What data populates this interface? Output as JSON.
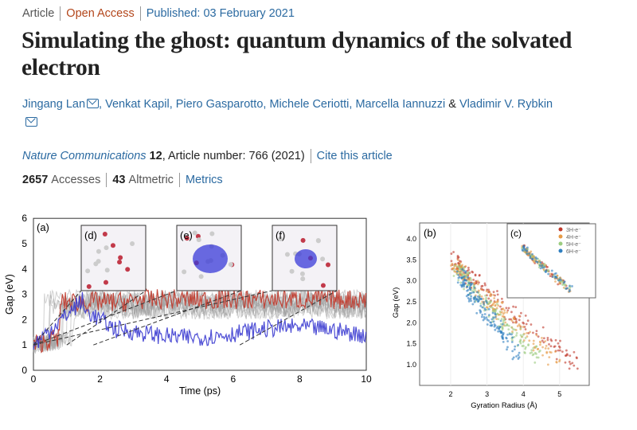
{
  "header": {
    "type": "Article",
    "access": "Open Access",
    "published": "Published: 03 February 2021"
  },
  "title": "Simulating the ghost: quantum dynamics of the solvated electron",
  "authors": [
    "Jingang Lan",
    "Venkat Kapil",
    "Piero Gasparotto",
    "Michele Ceriotti",
    "Marcella Iannuzzi",
    "Vladimir V. Rybkin"
  ],
  "author_sep": ",",
  "amp": "&",
  "journal": {
    "name": "Nature Communications",
    "volume": "12",
    "article": ", Article number: 766 (2021)",
    "cite": "Cite this article"
  },
  "metrics": {
    "accesses": "2657",
    "accesses_label": "Accesses",
    "altmetric": "43",
    "altmetric_label": "Altmetric",
    "link": "Metrics"
  },
  "figure": {
    "left": {
      "panel": "(a)",
      "insets": [
        "(d)",
        "(e)",
        "(f)"
      ],
      "xlabel": "Time (ps)",
      "ylabel": "Gap (eV)",
      "xticks": [
        "0",
        "2",
        "4",
        "6",
        "8",
        "10"
      ],
      "yticks": [
        "0",
        "1",
        "2",
        "3",
        "4",
        "5",
        "6"
      ],
      "colors": {
        "red": "#c0392b",
        "blue": "#3b3bd0",
        "gray": "#999999"
      }
    },
    "right": {
      "panel": "(b)",
      "inset": "(c)",
      "xlabel": "Gyration Radius (Å)",
      "ylabel": "Gap (eV)",
      "xticks": [
        "2",
        "3",
        "4",
        "5"
      ],
      "yticks": [
        "1.0",
        "1.5",
        "2.0",
        "2.5",
        "3.0",
        "3.5",
        "4.0"
      ],
      "legend": [
        {
          "label": "3H-e⁻",
          "color": "#c0392b"
        },
        {
          "label": "4H-e⁻",
          "color": "#e69a45"
        },
        {
          "label": "5H-e⁻",
          "color": "#9ccc80"
        },
        {
          "label": "6H-e⁻",
          "color": "#2f7fc0"
        }
      ]
    }
  }
}
